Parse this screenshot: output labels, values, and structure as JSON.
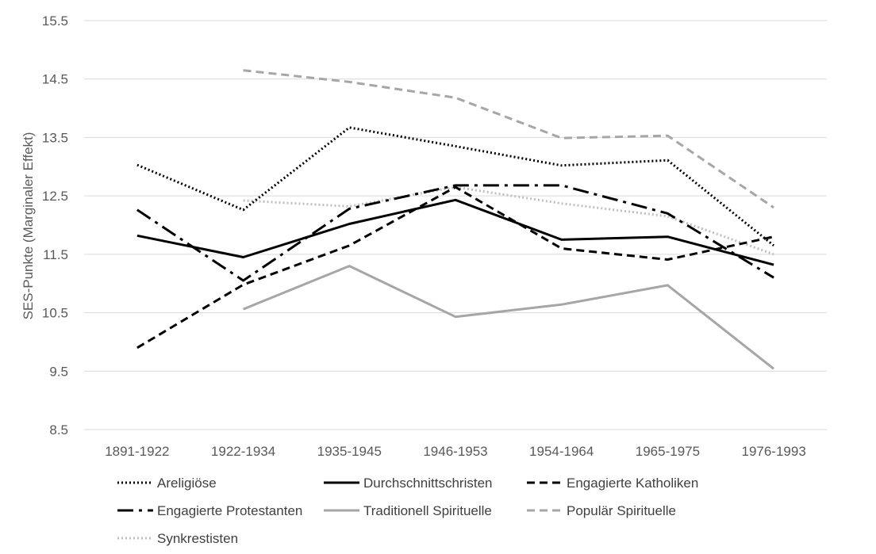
{
  "chart_data": {
    "type": "line",
    "title": "",
    "xlabel": "",
    "ylabel": "SES-Punkte (Marginaler Effekt)",
    "ylim": [
      8.5,
      15.5
    ],
    "yticks": [
      "8.5",
      "9.5",
      "10.5",
      "11.5",
      "12.5",
      "13.5",
      "14.5",
      "15.5"
    ],
    "grid": "horizontal",
    "legend_position": "bottom",
    "categories": [
      "1891-1922",
      "1922-1934",
      "1935-1945",
      "1946-1953",
      "1954-1964",
      "1965-1975",
      "1976-1993"
    ],
    "series": [
      {
        "name": "Areligiöse",
        "color": "#000000",
        "style": "dotted",
        "values": [
          13.03,
          12.26,
          13.67,
          13.35,
          13.02,
          13.11,
          11.65
        ]
      },
      {
        "name": "Durchschnittschristen",
        "color": "#000000",
        "style": "solid",
        "values": [
          11.82,
          11.45,
          12.02,
          12.43,
          11.75,
          11.8,
          11.32
        ]
      },
      {
        "name": "Engagierte Katholiken",
        "color": "#000000",
        "style": "dashed",
        "values": [
          9.9,
          10.98,
          11.65,
          12.65,
          11.6,
          11.41,
          11.8
        ]
      },
      {
        "name": "Engagierte Protestanten",
        "color": "#000000",
        "style": "longdashdot",
        "values": [
          12.26,
          11.05,
          12.28,
          12.68,
          12.68,
          12.2,
          11.1
        ]
      },
      {
        "name": "Traditionell Spirituelle",
        "color": "#a6a6a6",
        "style": "solid",
        "values": [
          null,
          10.56,
          11.3,
          10.43,
          10.64,
          10.97,
          9.54
        ]
      },
      {
        "name": "Populär Spirituelle",
        "color": "#a6a6a6",
        "style": "dashed",
        "values": [
          null,
          14.65,
          14.45,
          14.18,
          13.49,
          13.53,
          12.3
        ]
      },
      {
        "name": "Synkrestisten",
        "color": "#bfbfbf",
        "style": "dotted",
        "values": [
          null,
          12.42,
          12.32,
          12.65,
          12.37,
          12.15,
          11.5
        ]
      }
    ]
  }
}
